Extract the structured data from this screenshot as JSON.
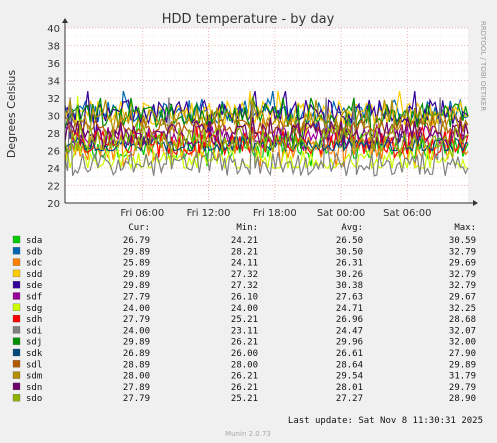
{
  "chart_data": {
    "type": "line",
    "title": "HDD temperature - by day",
    "ylabel": "Degrees Celsius",
    "side_label": "RRDTOOL / TOBI OETIKER",
    "ylim": [
      20,
      40
    ],
    "yticks": [
      "20",
      "22",
      "24",
      "26",
      "28",
      "30",
      "32",
      "34",
      "36",
      "38",
      "40"
    ],
    "xlim": [
      "Thu 23:00",
      "Sat 11:30"
    ],
    "xticks": [
      {
        "label": "Fri 06:00",
        "t": 7
      },
      {
        "label": "Fri 12:00",
        "t": 13
      },
      {
        "label": "Fri 18:00",
        "t": 19
      },
      {
        "label": "Sat 00:00",
        "t": 25
      },
      {
        "label": "Sat 06:00",
        "t": 31
      }
    ],
    "time_span_hours": 36.5,
    "grid": true,
    "legend_headers": {
      "cur": "Cur:",
      "min": "Min:",
      "avg": "Avg:",
      "max": "Max:"
    },
    "series": [
      {
        "name": "sda",
        "color": "#00cc00",
        "cur": "26.79",
        "min": "24.21",
        "avg": "26.50",
        "max": "30.59"
      },
      {
        "name": "sdb",
        "color": "#0066b3",
        "cur": "29.89",
        "min": "28.21",
        "avg": "30.50",
        "max": "32.79"
      },
      {
        "name": "sdc",
        "color": "#ff8000",
        "cur": "25.89",
        "min": "24.11",
        "avg": "26.31",
        "max": "29.69"
      },
      {
        "name": "sdd",
        "color": "#ffcc00",
        "cur": "29.89",
        "min": "27.32",
        "avg": "30.26",
        "max": "32.79"
      },
      {
        "name": "sde",
        "color": "#330099",
        "cur": "29.89",
        "min": "27.32",
        "avg": "30.38",
        "max": "32.79"
      },
      {
        "name": "sdf",
        "color": "#990099",
        "cur": "27.79",
        "min": "26.10",
        "avg": "27.63",
        "max": "29.67"
      },
      {
        "name": "sdg",
        "color": "#ccff00",
        "cur": "24.00",
        "min": "24.00",
        "avg": "24.71",
        "max": "32.25"
      },
      {
        "name": "sdh",
        "color": "#ff0000",
        "cur": "27.79",
        "min": "25.21",
        "avg": "26.96",
        "max": "28.68"
      },
      {
        "name": "sdi",
        "color": "#808080",
        "cur": "24.00",
        "min": "23.11",
        "avg": "24.47",
        "max": "32.07"
      },
      {
        "name": "sdj",
        "color": "#008f00",
        "cur": "29.89",
        "min": "26.21",
        "avg": "29.96",
        "max": "32.00"
      },
      {
        "name": "sdk",
        "color": "#00487d",
        "cur": "26.89",
        "min": "26.00",
        "avg": "26.61",
        "max": "27.90"
      },
      {
        "name": "sdl",
        "color": "#b35a00",
        "cur": "28.89",
        "min": "28.00",
        "avg": "28.64",
        "max": "29.89"
      },
      {
        "name": "sdm",
        "color": "#b38f00",
        "cur": "28.00",
        "min": "26.21",
        "avg": "29.54",
        "max": "31.79"
      },
      {
        "name": "sdn",
        "color": "#6b006b",
        "cur": "27.89",
        "min": "26.21",
        "avg": "28.01",
        "max": "29.79"
      },
      {
        "name": "sdo",
        "color": "#8fb300",
        "cur": "27.79",
        "min": "25.21",
        "avg": "27.27",
        "max": "28.90"
      }
    ],
    "last_update": "Last update: Sat Nov  8 11:30:31 2025",
    "footer": "Munin 2.0.73"
  }
}
